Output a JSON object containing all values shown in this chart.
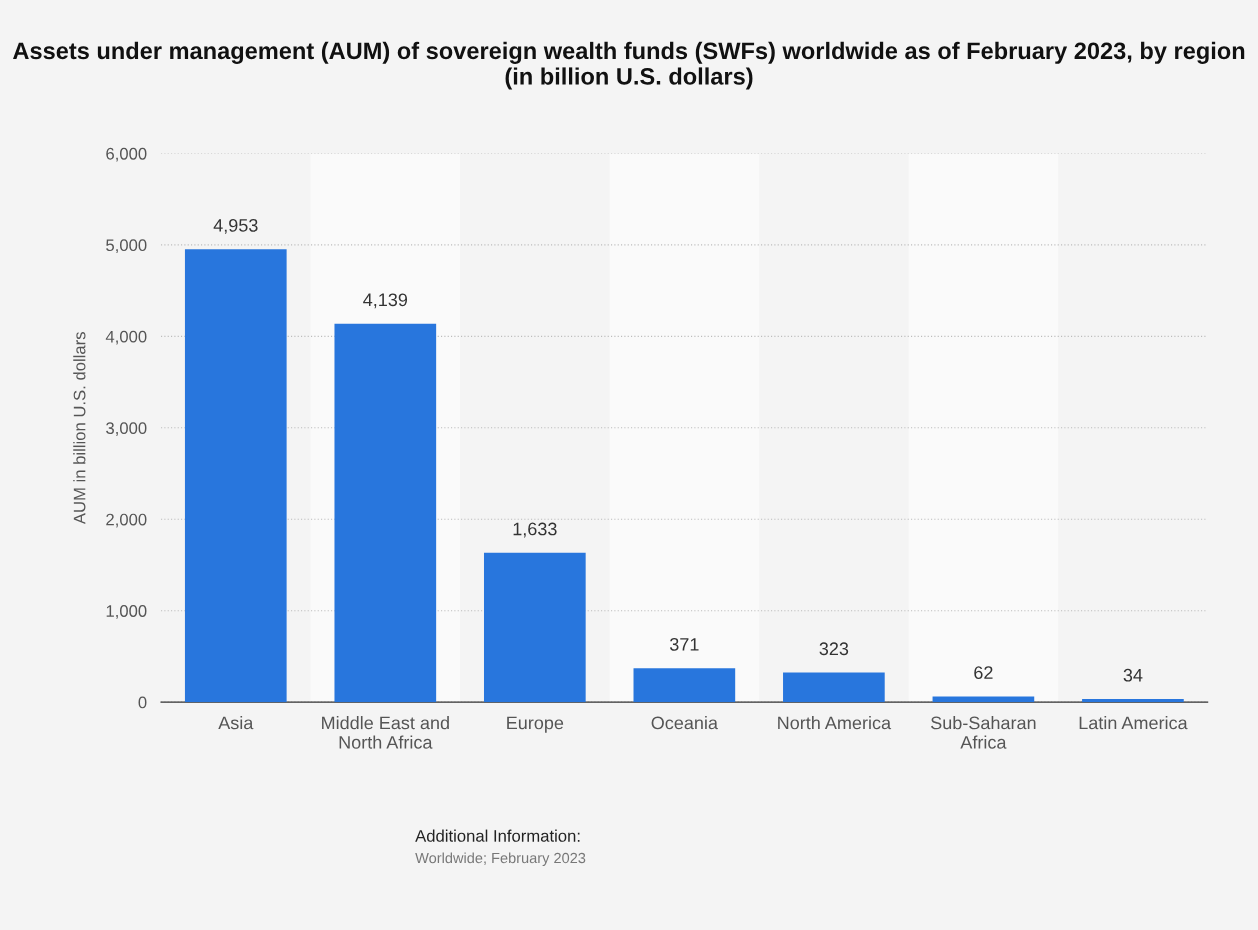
{
  "chart_data": {
    "type": "bar",
    "title": "Assets under management (AUM) of sovereign wealth funds (SWFs) worldwide as of February 2023, by region (in billion U.S. dollars)",
    "ylabel": "AUM in billion U.S. dollars",
    "categories": [
      "Asia",
      "Middle East and\nNorth Africa",
      "Europe",
      "Oceania",
      "North America",
      "Sub-Saharan\nAfrica",
      "Latin America"
    ],
    "values": [
      4953,
      4139,
      1633,
      371,
      323,
      62,
      34
    ],
    "value_labels": [
      "4,953",
      "4,139",
      "1,633",
      "371",
      "323",
      "62",
      "34"
    ],
    "color": "#2876dd",
    "ylim": [
      0,
      6000
    ],
    "yticks": [
      {
        "value": 0,
        "label": "0"
      },
      {
        "value": 1000,
        "label": "1,000"
      },
      {
        "value": 2000,
        "label": "2,000"
      },
      {
        "value": 3000,
        "label": "3,000"
      },
      {
        "value": 4000,
        "label": "4,000"
      },
      {
        "value": 5000,
        "label": "5,000"
      },
      {
        "value": 6000,
        "label": "6,000"
      }
    ],
    "grid": "y",
    "legend": false,
    "annotations": [
      "Additional Information:",
      "Worldwide; February 2023"
    ]
  }
}
